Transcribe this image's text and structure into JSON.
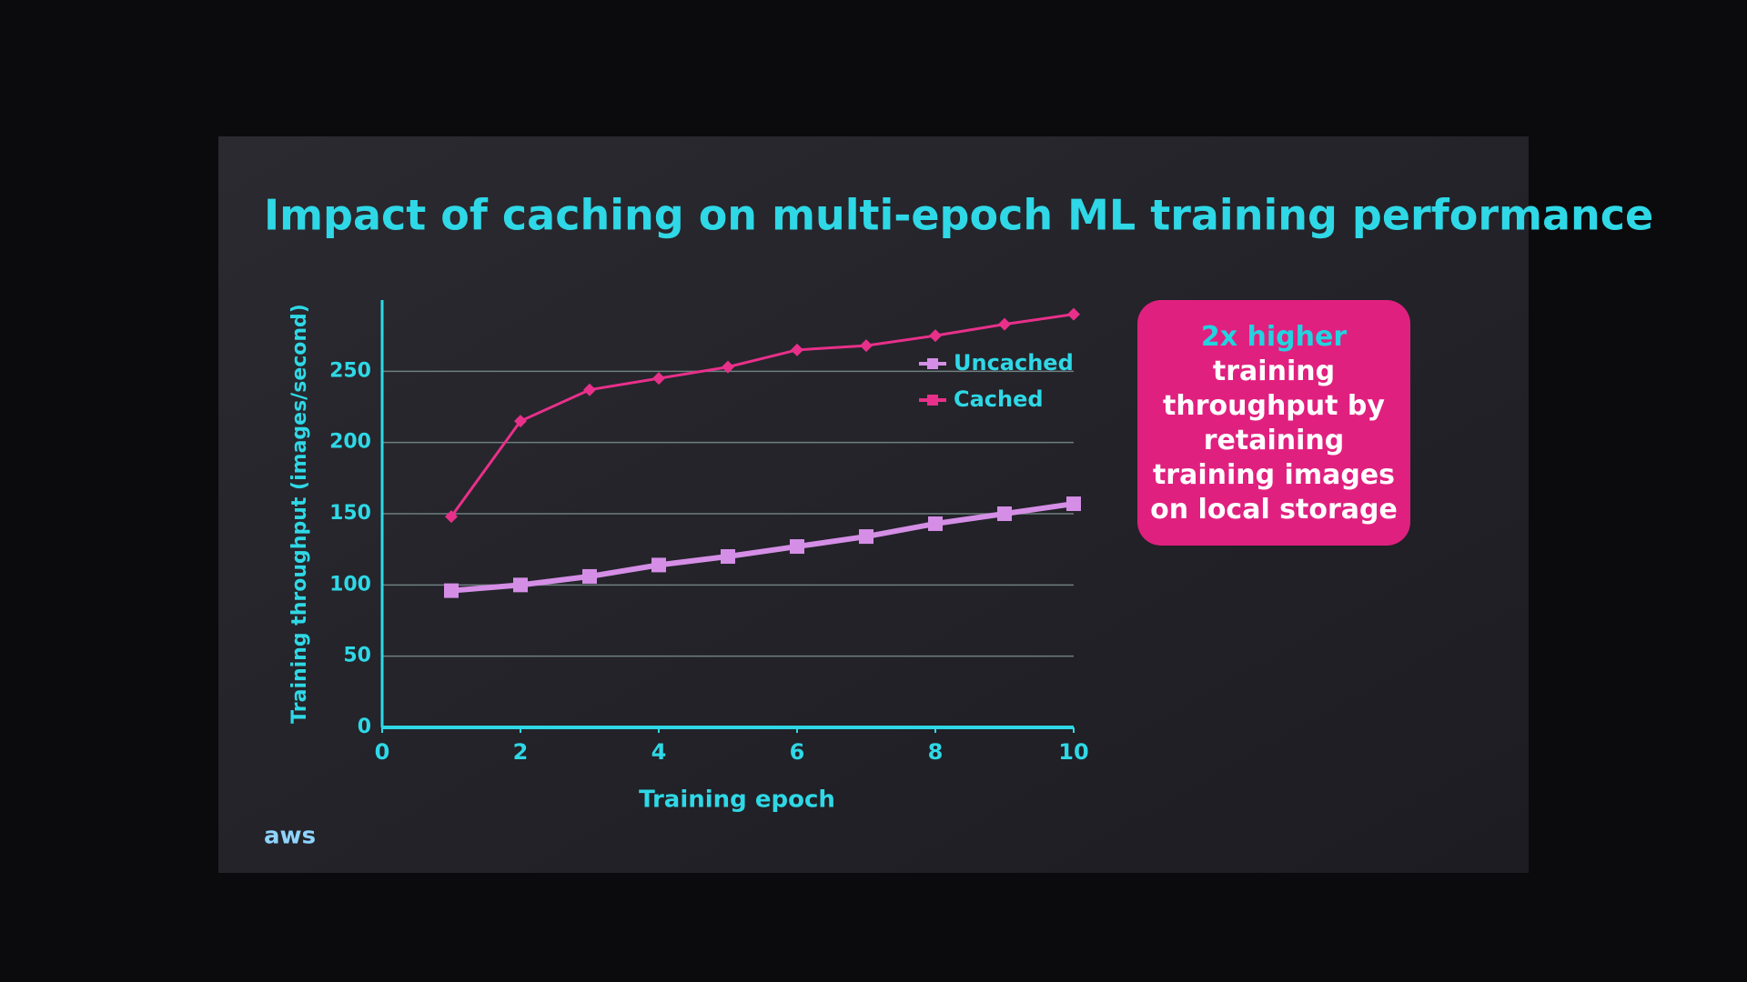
{
  "chart_data": {
    "type": "line",
    "title": "Impact of caching on multi-epoch ML training performance",
    "x_label": "Training epoch",
    "y_label": "Training throughput (images/second)",
    "x": [
      1,
      2,
      3,
      4,
      5,
      6,
      7,
      8,
      9,
      10
    ],
    "series": [
      {
        "name": "Uncached",
        "color": "#d58ee6",
        "marker": "square",
        "values": [
          96,
          100,
          106,
          114,
          120,
          127,
          134,
          143,
          150,
          157
        ]
      },
      {
        "name": "Cached",
        "color": "#e8308a",
        "marker": "diamond",
        "values": [
          148,
          215,
          237,
          245,
          253,
          265,
          268,
          275,
          283,
          290
        ]
      }
    ],
    "xlim": [
      0,
      10
    ],
    "xticks": [
      0,
      2,
      4,
      6,
      8,
      10
    ],
    "ylim": [
      0,
      300
    ],
    "yticks": [
      0,
      50,
      100,
      150,
      200,
      250
    ],
    "grid": true,
    "legend": "upper-right",
    "annotation": {
      "highlight": "2x higher",
      "text": "training throughput by retaining training images on local storage"
    },
    "logo": "aws"
  }
}
